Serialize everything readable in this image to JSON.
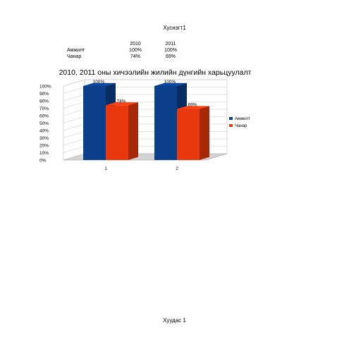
{
  "sheet": {
    "title": "Хуснэгт1",
    "table": {
      "headers": [
        "2010",
        "2011"
      ],
      "rows": [
        {
          "label": "Амжилт",
          "values": [
            "100%",
            "100%"
          ]
        },
        {
          "label": "Чанар",
          "values": [
            "74%",
            "69%"
          ]
        }
      ]
    },
    "footer": "Хуудас 1"
  },
  "chart_data": {
    "type": "bar",
    "title": "2010, 2011 оны хичээлийн жилийн дүнгийн харьцуулалт",
    "categories": [
      "1",
      "2"
    ],
    "series": [
      {
        "name": "Амжилт",
        "values": [
          100,
          100
        ],
        "labels": [
          "100%",
          "100%"
        ],
        "color": "#0b3f8a"
      },
      {
        "name": "Чанар",
        "values": [
          74,
          69
        ],
        "labels": [
          "74%",
          "69%"
        ],
        "color": "#e8380d"
      }
    ],
    "ylim": [
      0,
      100
    ],
    "yticks": [
      "0%",
      "10%",
      "20%",
      "30%",
      "40%",
      "50%",
      "60%",
      "70%",
      "80%",
      "90%",
      "100%"
    ],
    "grid": true,
    "legend": "right",
    "style": "3d-column"
  }
}
